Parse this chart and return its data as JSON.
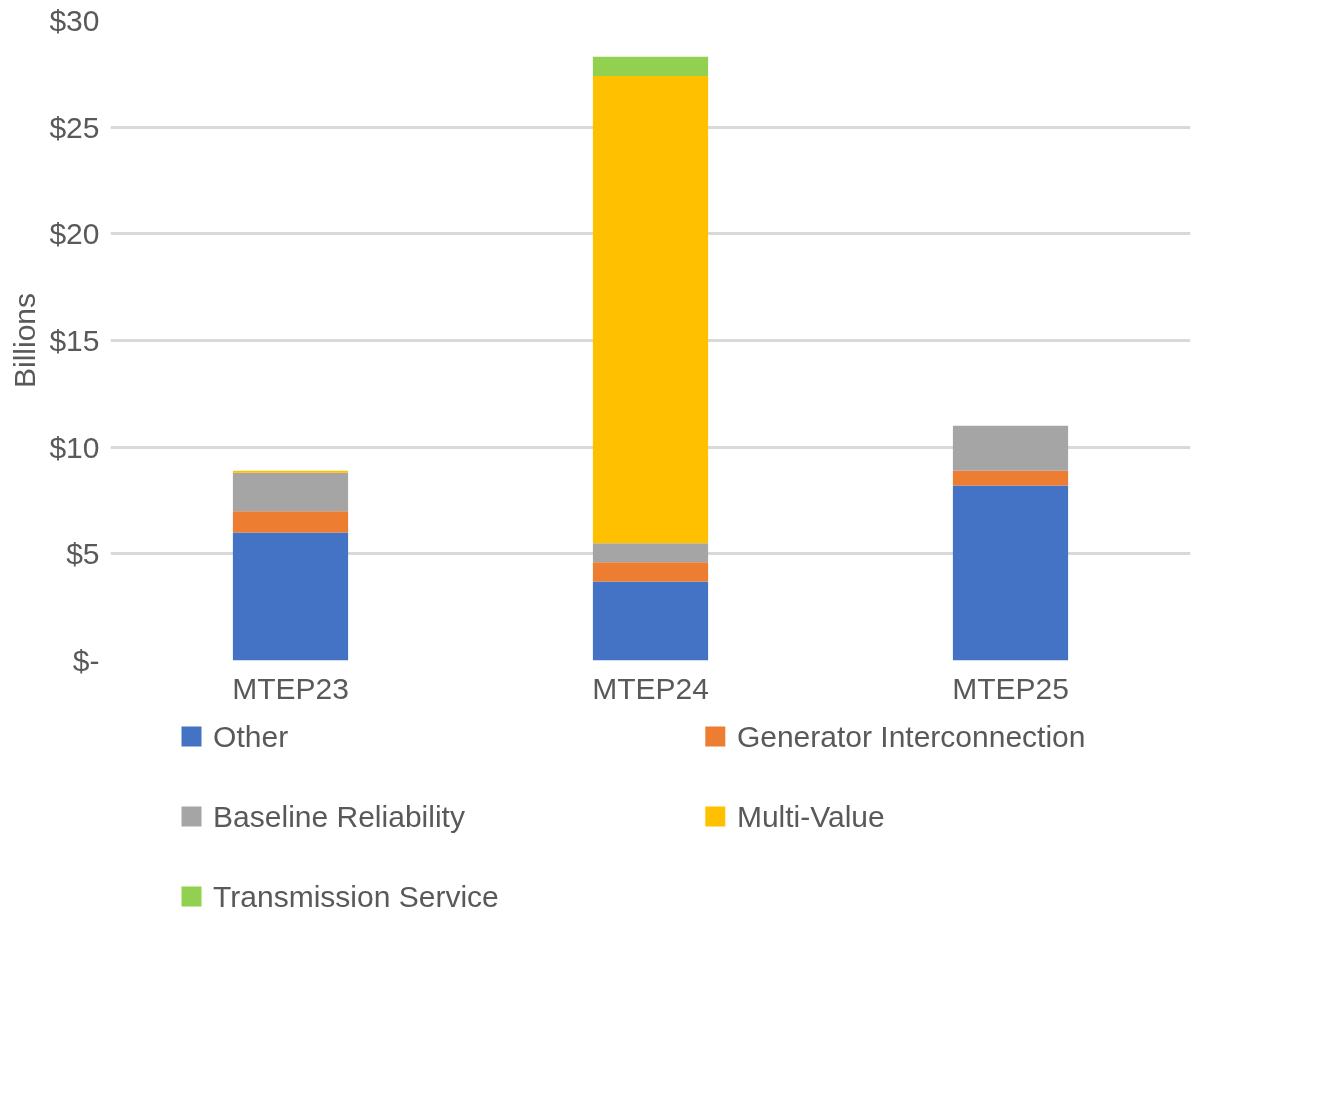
{
  "chart_data": {
    "type": "bar",
    "stacked": true,
    "ylabel": "Billions",
    "categories": [
      "MTEP23",
      "MTEP24",
      "MTEP25"
    ],
    "series": [
      {
        "name": "Other",
        "color": "#4472c4",
        "values": [
          6.0,
          3.7,
          8.2
        ]
      },
      {
        "name": "Generator Interconnection",
        "color": "#ed7d31",
        "values": [
          1.0,
          0.9,
          0.7
        ]
      },
      {
        "name": "Baseline Reliability",
        "color": "#a5a5a5",
        "values": [
          1.8,
          0.9,
          2.1
        ]
      },
      {
        "name": "Multi-Value",
        "color": "#ffc000",
        "values": [
          0.1,
          21.9,
          0
        ]
      },
      {
        "name": "Transmission Service",
        "color": "#92d050",
        "values": [
          0,
          0.9,
          0
        ]
      }
    ],
    "ylim": [
      0,
      30
    ],
    "yticks": [
      {
        "value": 0,
        "label": "$-"
      },
      {
        "value": 5,
        "label": "$5"
      },
      {
        "value": 10,
        "label": "$10"
      },
      {
        "value": 15,
        "label": "$15"
      },
      {
        "value": 20,
        "label": "$20"
      },
      {
        "value": 25,
        "label": "$25"
      },
      {
        "value": 30,
        "label": "$30"
      }
    ],
    "grid": "y",
    "legend": "bottom"
  }
}
